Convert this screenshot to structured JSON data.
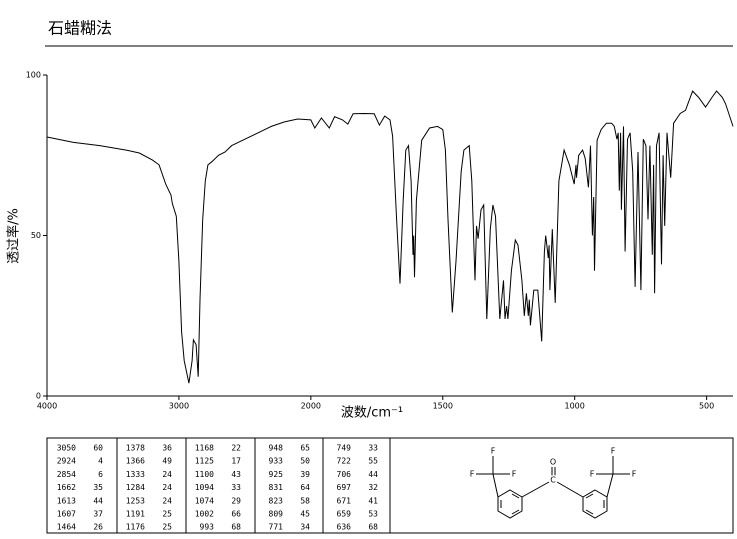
{
  "chart_data": {
    "type": "line",
    "title": "石蜡糊法",
    "xlabel": "波数/cm⁻¹",
    "ylabel": "透过率/%",
    "color": "#000000",
    "xlim": [
      4000,
      400
    ],
    "x_scale_break": 2000,
    "xticks": [
      4000,
      3000,
      2000,
      1500,
      1000,
      500
    ],
    "ylim": [
      0,
      100
    ],
    "yticks": [
      0,
      50,
      100
    ],
    "x": [
      4000,
      3800,
      3600,
      3400,
      3300,
      3200,
      3150,
      3100,
      3060,
      3050,
      3020,
      3000,
      2980,
      2960,
      2924,
      2900,
      2890,
      2870,
      2854,
      2840,
      2820,
      2800,
      2780,
      2750,
      2700,
      2650,
      2600,
      2500,
      2400,
      2300,
      2200,
      2100,
      2000,
      1985,
      1960,
      1930,
      1910,
      1880,
      1860,
      1840,
      1800,
      1760,
      1740,
      1720,
      1700,
      1690,
      1675,
      1662,
      1650,
      1640,
      1630,
      1620,
      1613,
      1610,
      1607,
      1600,
      1580,
      1550,
      1520,
      1500,
      1490,
      1480,
      1464,
      1450,
      1430,
      1420,
      1400,
      1390,
      1378,
      1372,
      1366,
      1355,
      1345,
      1333,
      1320,
      1310,
      1300,
      1284,
      1270,
      1264,
      1258,
      1253,
      1240,
      1225,
      1215,
      1200,
      1191,
      1183,
      1176,
      1172,
      1168,
      1155,
      1140,
      1125,
      1115,
      1110,
      1100,
      1097,
      1094,
      1085,
      1074,
      1060,
      1040,
      1020,
      1002,
      995,
      993,
      985,
      970,
      960,
      948,
      940,
      933,
      928,
      925,
      915,
      900,
      880,
      860,
      850,
      840,
      835,
      831,
      826,
      823,
      815,
      809,
      800,
      790,
      780,
      771,
      760,
      749,
      740,
      730,
      722,
      715,
      706,
      701,
      697,
      690,
      680,
      671,
      665,
      659,
      650,
      636,
      625,
      600,
      580,
      553,
      530,
      504,
      480,
      462,
      440,
      428,
      400
    ],
    "values": [
      80.7,
      79,
      78,
      76.6,
      75.7,
      73.5,
      72,
      66,
      62.6,
      60,
      56,
      42,
      20,
      11,
      4,
      11,
      17.5,
      16,
      6,
      30,
      55,
      67,
      72,
      73,
      75,
      76,
      78,
      80,
      82,
      84,
      85.4,
      86.3,
      86,
      83.5,
      86.6,
      83.5,
      87,
      86,
      84.7,
      87.9,
      88,
      87.9,
      84.4,
      87.2,
      86,
      81,
      55,
      35,
      61,
      76.6,
      78,
      67,
      44,
      50,
      37,
      61,
      79.7,
      83.5,
      84,
      83,
      76.6,
      55,
      26,
      42,
      70,
      76.6,
      78,
      67,
      36,
      53,
      49,
      58,
      59.5,
      24,
      52,
      59.5,
      56,
      24,
      36,
      24,
      28,
      24,
      39,
      48.6,
      47,
      36,
      25,
      32,
      25,
      30,
      22,
      33,
      33,
      17,
      45,
      50,
      43,
      47,
      33,
      52,
      29,
      67,
      76.6,
      72,
      66,
      72,
      68,
      75,
      76.6,
      74,
      65,
      78,
      50,
      62,
      39,
      79.7,
      83,
      85,
      85,
      84,
      80,
      82,
      64,
      82,
      58,
      84,
      45,
      80,
      82,
      70,
      34,
      76,
      33,
      80,
      78,
      55,
      78,
      44,
      72,
      32,
      78,
      82,
      41,
      75,
      53,
      82,
      68,
      85,
      88,
      89,
      95,
      93,
      90,
      93,
      95,
      93,
      91,
      84
    ]
  },
  "peak_table": {
    "columns": [
      [
        [
          3050,
          60
        ],
        [
          2924,
          4
        ],
        [
          2854,
          6
        ],
        [
          1662,
          35
        ],
        [
          1613,
          44
        ],
        [
          1607,
          37
        ],
        [
          1464,
          26
        ]
      ],
      [
        [
          1378,
          36
        ],
        [
          1366,
          49
        ],
        [
          1333,
          24
        ],
        [
          1284,
          24
        ],
        [
          1253,
          24
        ],
        [
          1191,
          25
        ],
        [
          1176,
          25
        ]
      ],
      [
        [
          1168,
          22
        ],
        [
          1125,
          17
        ],
        [
          1100,
          43
        ],
        [
          1094,
          33
        ],
        [
          1074,
          29
        ],
        [
          1002,
          66
        ],
        [
          993,
          68
        ]
      ],
      [
        [
          948,
          65
        ],
        [
          933,
          50
        ],
        [
          925,
          39
        ],
        [
          831,
          64
        ],
        [
          823,
          58
        ],
        [
          809,
          45
        ],
        [
          771,
          34
        ]
      ],
      [
        [
          749,
          33
        ],
        [
          722,
          55
        ],
        [
          706,
          44
        ],
        [
          697,
          32
        ],
        [
          671,
          41
        ],
        [
          659,
          53
        ],
        [
          636,
          68
        ]
      ]
    ]
  },
  "structure": {
    "labels": [
      "F",
      "F",
      "F",
      "F",
      "F",
      "F",
      "O",
      "C"
    ]
  }
}
